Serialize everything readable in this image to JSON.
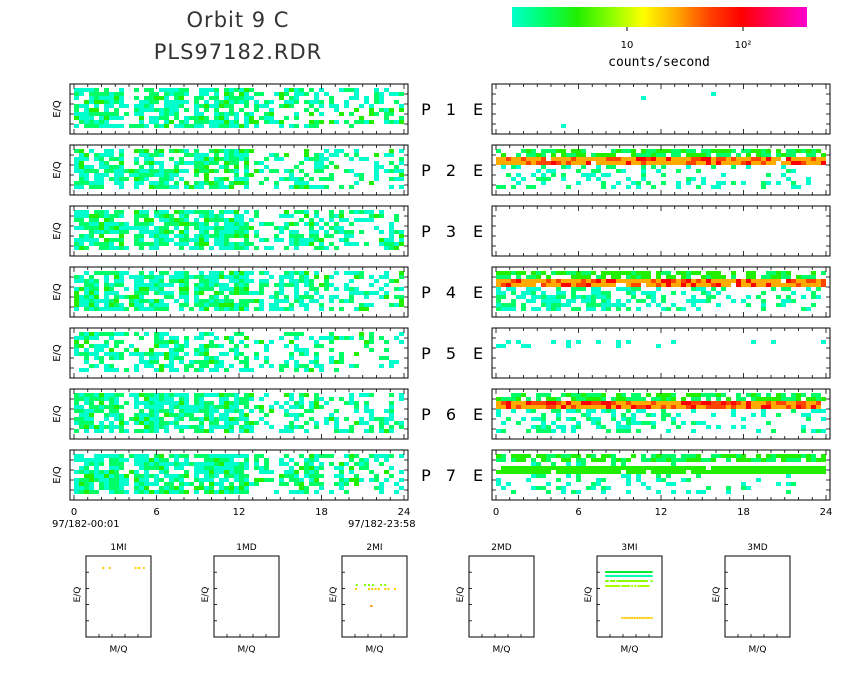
{
  "header": {
    "title_line1": "Orbit  9  C",
    "title_line2": "PLS97182.RDR"
  },
  "colorbar": {
    "tick_labels": [
      "10",
      "10²"
    ],
    "label": "counts/second",
    "colors": [
      "#00ffcc",
      "#00ff66",
      "#22ee00",
      "#88ff00",
      "#ffff00",
      "#ffaa00",
      "#ff4400",
      "#ff0000",
      "#ff0066",
      "#ff00cc"
    ]
  },
  "chart_data": [
    {
      "type": "heatmap",
      "name": "P-panels",
      "ylabel": "E/Q",
      "xlim": [
        0,
        24
      ],
      "xticks": [
        "0",
        "6",
        "12",
        "18",
        "24"
      ],
      "x_start_label": "97/182-00:01",
      "x_end_label": "97/182-23:58",
      "rows": [
        {
          "label": "P",
          "num": "1",
          "density": 0.75
        },
        {
          "label": "P",
          "num": "2",
          "density": 0.75
        },
        {
          "label": "P",
          "num": "3",
          "density": 0.8
        },
        {
          "label": "P",
          "num": "4",
          "density": 0.8
        },
        {
          "label": "P",
          "num": "5",
          "density": 0.55
        },
        {
          "label": "P",
          "num": "6",
          "density": 0.75
        },
        {
          "label": "P",
          "num": "7",
          "density": 0.85
        }
      ]
    },
    {
      "type": "heatmap",
      "name": "E-panels",
      "xlim": [
        0,
        24
      ],
      "xticks": [
        "0",
        "6",
        "12",
        "18",
        "24"
      ],
      "rows": [
        {
          "label": "E",
          "density": 0.0
        },
        {
          "label": "E",
          "density": 0.5
        },
        {
          "label": "E",
          "density": 0.0
        },
        {
          "label": "E",
          "density": 0.8
        },
        {
          "label": "E",
          "density": 0.0
        },
        {
          "label": "E",
          "density": 0.6
        },
        {
          "label": "E",
          "density": 0.35
        }
      ]
    },
    {
      "type": "scatter",
      "name": "mass-spectra",
      "xlabel": "M/Q",
      "ylabel": "E/Q",
      "panels": [
        {
          "title": "1MI"
        },
        {
          "title": "1MD"
        },
        {
          "title": "2MI"
        },
        {
          "title": "2MD"
        },
        {
          "title": "3MI"
        },
        {
          "title": "3MD"
        }
      ]
    }
  ]
}
